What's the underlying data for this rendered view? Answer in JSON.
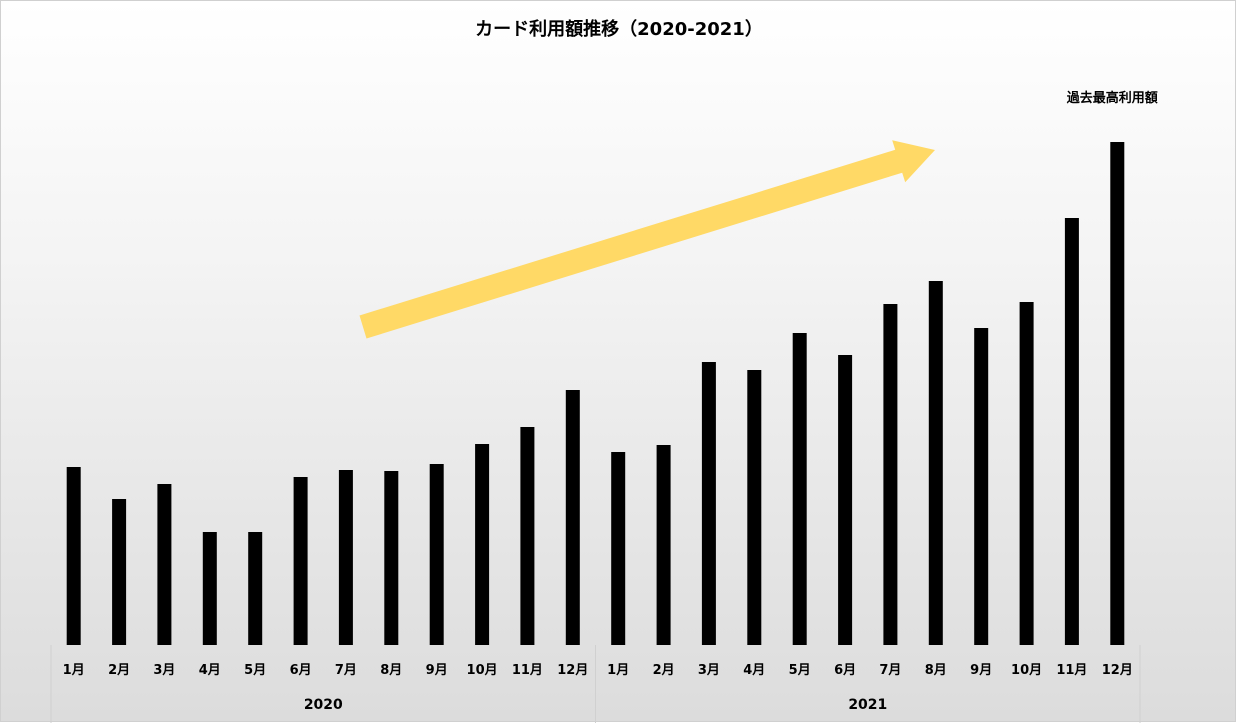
{
  "chart_data": {
    "type": "bar",
    "title": "カード利用額推移（2020-2021）",
    "categories": [
      "1月",
      "2月",
      "3月",
      "4月",
      "5月",
      "6月",
      "7月",
      "8月",
      "9月",
      "10月",
      "11月",
      "12月",
      "1月",
      "2月",
      "3月",
      "4月",
      "5月",
      "6月",
      "7月",
      "8月",
      "9月",
      "10月",
      "11月",
      "12月"
    ],
    "groups": [
      {
        "label": "2020",
        "count": 12
      },
      {
        "label": "2021",
        "count": 12
      }
    ],
    "values": [
      178,
      146,
      161,
      113,
      113,
      168,
      175,
      174,
      181,
      201,
      218,
      255,
      193,
      200,
      283,
      275,
      312,
      290,
      341,
      364,
      317,
      343,
      427,
      503
    ],
    "ylim": [
      0,
      520
    ],
    "xlabel": "",
    "ylabel": "",
    "grid": false,
    "bar_color": "#000000",
    "arrow_color": "#FFD966",
    "annotation": "過去最高利用額"
  }
}
